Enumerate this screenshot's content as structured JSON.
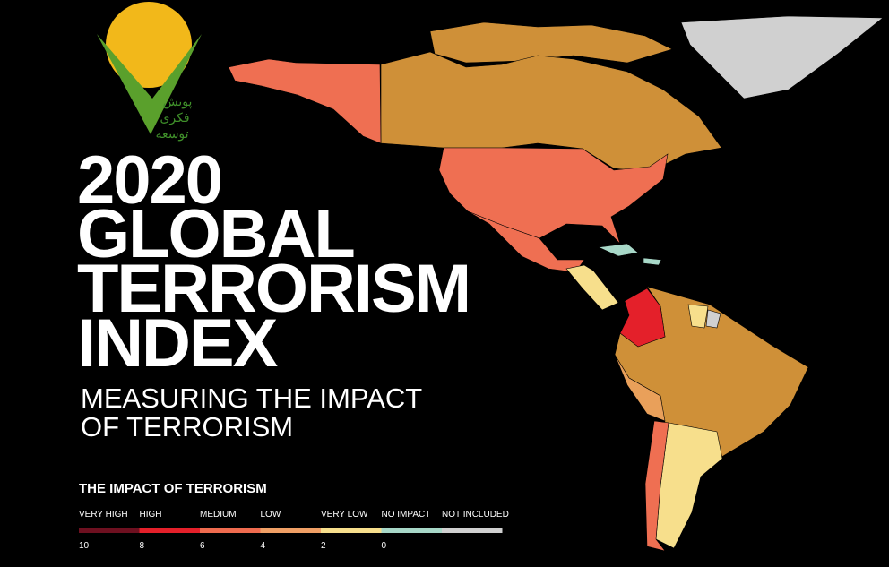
{
  "logo": {
    "lines": [
      "پویش",
      "فکری",
      "توسعه"
    ]
  },
  "title": {
    "lines": [
      "2020",
      "GLOBAL",
      "TERRORISM",
      "INDEX"
    ]
  },
  "subtitle": {
    "lines": [
      "MEASURING THE IMPACT",
      "OF TERRORISM"
    ]
  },
  "legend": {
    "title": "THE IMPACT OF TERRORISM",
    "levels": [
      {
        "label": "VERY HIGH",
        "color": "#6e1020"
      },
      {
        "label": "HIGH",
        "color": "#e4202a"
      },
      {
        "label": "MEDIUM",
        "color": "#ef6b4f"
      },
      {
        "label": "LOW",
        "color": "#f0a066"
      },
      {
        "label": "VERY LOW",
        "color": "#f7df8c"
      },
      {
        "label": "NO IMPACT",
        "color": "#a8d8c8"
      },
      {
        "label": "NOT INCLUDED",
        "color": "#d0d0d0"
      }
    ],
    "scale": [
      10,
      8,
      6,
      4,
      2,
      0
    ]
  }
}
